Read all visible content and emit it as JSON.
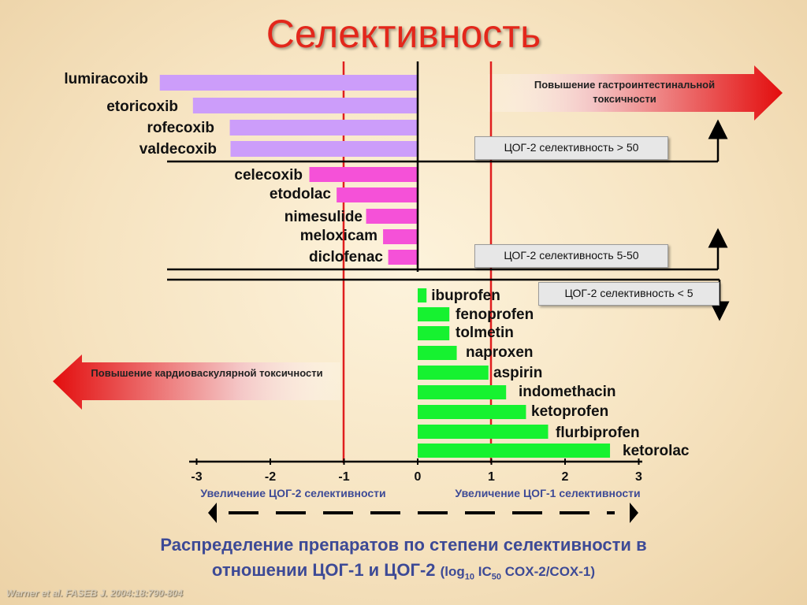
{
  "title": "Селективность",
  "chart_data": {
    "type": "bar",
    "orientation": "horizontal",
    "x_label_left": "Увеличение ЦОГ-2 селективности",
    "x_label_right": "Увеличение ЦОГ-1 селективности",
    "xlim": [
      -3,
      3
    ],
    "x_ticks": [
      "-3",
      "-2",
      "-1",
      "0",
      "1",
      "2",
      "3"
    ],
    "reference_lines": [
      -1,
      1
    ],
    "groups": [
      {
        "label": "ЦОГ-2 селективность > 50",
        "color": "#cc9dfa",
        "items": [
          {
            "name": "lumiracoxib",
            "value": -3.5
          },
          {
            "name": "etoricoxib",
            "value": -3.05
          },
          {
            "name": "rofecoxib",
            "value": -2.55
          },
          {
            "name": "valdecoxib",
            "value": -2.54
          }
        ]
      },
      {
        "label": "ЦОГ-2 селективность 5-50",
        "color": "#f551d8",
        "items": [
          {
            "name": "celecoxib",
            "value": -1.47
          },
          {
            "name": "etodolac",
            "value": -1.1
          },
          {
            "name": "nimesulide",
            "value": -0.7
          },
          {
            "name": "meloxicam",
            "value": -0.47
          },
          {
            "name": "diclofenac",
            "value": -0.4
          }
        ]
      },
      {
        "label": "ЦОГ-2 селективность < 5",
        "color": "#16f230",
        "items": [
          {
            "name": "ibuprofen",
            "value": 0.12
          },
          {
            "name": "fenoprofen",
            "value": 0.43
          },
          {
            "name": "tolmetin",
            "value": 0.43
          },
          {
            "name": "naproxen",
            "value": 0.53
          },
          {
            "name": "aspirin",
            "value": 0.96
          },
          {
            "name": "indomethacin",
            "value": 1.2
          },
          {
            "name": "ketoprofen",
            "value": 1.47
          },
          {
            "name": "flurbiprofen",
            "value": 1.77
          },
          {
            "name": "ketorolac",
            "value": 2.61
          }
        ]
      }
    ]
  },
  "arrows": {
    "gi": "Повышение гастроинтестинальной токсичности",
    "cv": "Повышение кардиоваскулярной токсичности"
  },
  "caption": {
    "line1": "Распределение препаратов по степени селективности в",
    "line2": "отношении ЦОГ-1 и ЦОГ-2",
    "formula_open": "(log",
    "formula_sub1": "10",
    "formula_mid": " IC",
    "formula_sub2": "50",
    "formula_close": " COX-2/COX-1)"
  },
  "citation": "Warner et al. FASEB J. 2004:18:790-804"
}
